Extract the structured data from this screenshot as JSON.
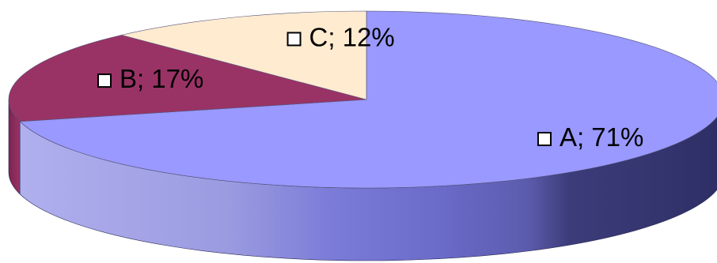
{
  "chart_data": {
    "type": "pie",
    "style": "3d",
    "title": "",
    "slices": [
      {
        "label": "A; 71%",
        "category": "A",
        "percent": 71,
        "color": "#9999ff",
        "side_color": "#5f5fb8"
      },
      {
        "label": "B; 17%",
        "category": "B",
        "percent": 17,
        "color": "#993366",
        "side_color": "#6b2447"
      },
      {
        "label": "C; 12%",
        "category": "C",
        "percent": 12,
        "color": "#ffebd0",
        "side_color": "#c9b89f"
      }
    ],
    "start_angle_deg": 0,
    "direction": "clockwise",
    "legend": "none",
    "label_marker": "square-outline"
  }
}
